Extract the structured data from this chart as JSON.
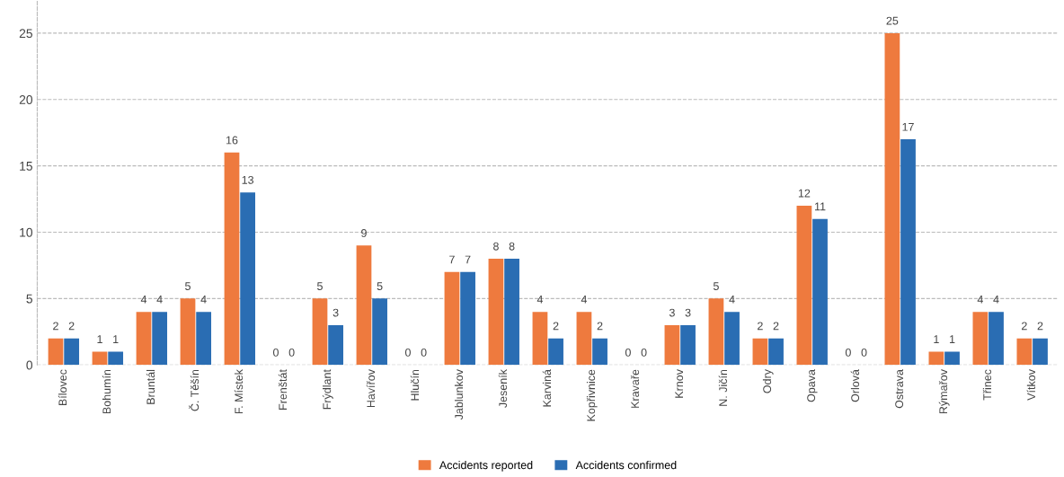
{
  "chart_data": {
    "type": "bar",
    "categories": [
      "Bílovec",
      "Bohumín",
      "Bruntál",
      "Č. Těšín",
      "F. Místek",
      "Frenštát",
      "Frýdlant",
      "Havířov",
      "Hlučín",
      "Jablunkov",
      "Jeseník",
      "Karviná",
      "Kopřivnice",
      "Kravaře",
      "Krnov",
      "N. Jičín",
      "Odry",
      "Opava",
      "Orlová",
      "Ostrava",
      "Rýmařov",
      "Třinec",
      "Vítkov"
    ],
    "series": [
      {
        "name": "Accidents reported",
        "color": "#ee7a3e",
        "values": [
          2,
          1,
          4,
          5,
          16,
          0,
          5,
          9,
          0,
          7,
          8,
          4,
          4,
          0,
          3,
          5,
          2,
          12,
          0,
          25,
          1,
          4,
          2
        ]
      },
      {
        "name": "Accidents confirmed",
        "color": "#2a6db3",
        "values": [
          2,
          1,
          4,
          4,
          13,
          0,
          3,
          5,
          0,
          7,
          8,
          2,
          2,
          0,
          3,
          4,
          2,
          11,
          0,
          17,
          1,
          4,
          2
        ]
      }
    ],
    "ylim": [
      0,
      27.5
    ],
    "yticks": [
      0,
      5,
      10,
      15,
      20,
      25
    ],
    "grid": "y",
    "legend": "bottom",
    "data_labels": true
  }
}
